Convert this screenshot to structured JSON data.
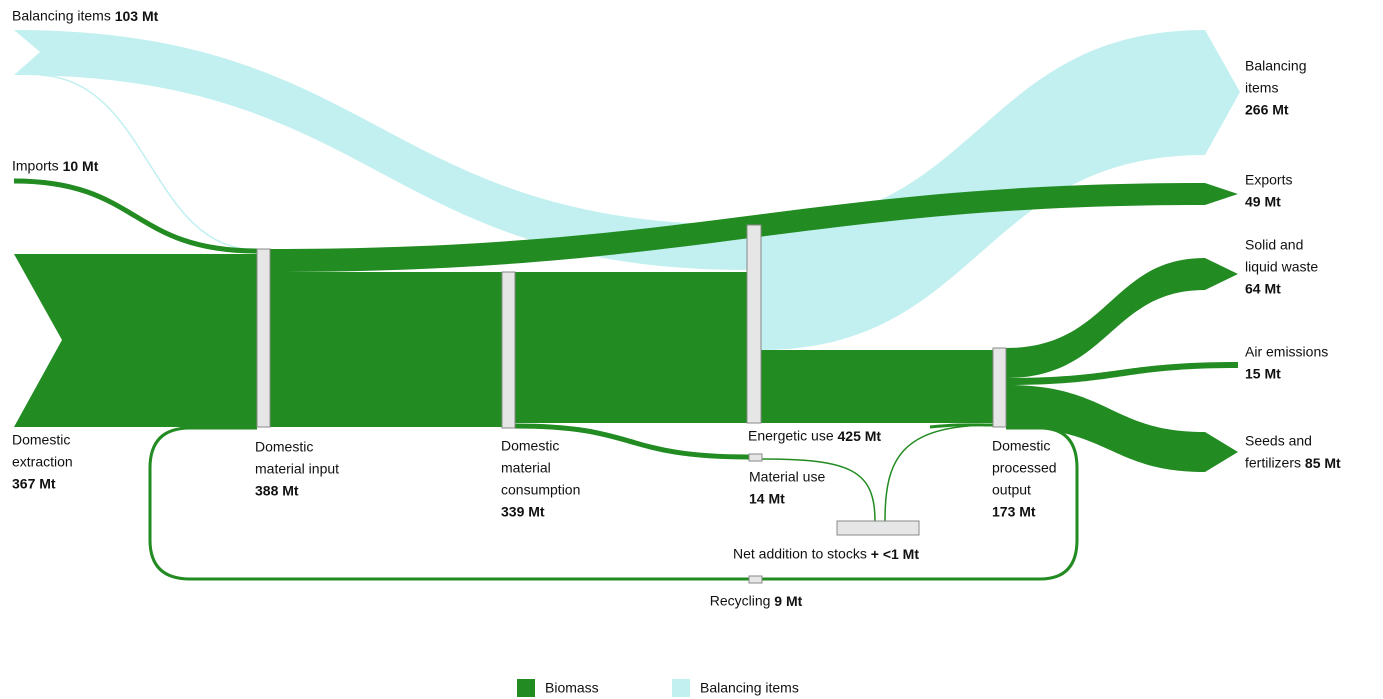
{
  "nodes": [
    {
      "label": [
        "Balancing items"
      ],
      "value": "103 Mt"
    },
    {
      "label": [
        "Imports"
      ],
      "value": "10 Mt"
    },
    {
      "label": [
        "Domestic",
        "extraction"
      ],
      "value": "367 Mt"
    },
    {
      "label": [
        "Domestic",
        "material input"
      ],
      "value": "388 Mt"
    },
    {
      "label": [
        "Domestic",
        "material",
        "consumption"
      ],
      "value": "339 Mt"
    },
    {
      "label": [
        "Energetic use"
      ],
      "value": "425 Mt"
    },
    {
      "label": [
        "Material use"
      ],
      "value": "14 Mt"
    },
    {
      "label": [
        "Net addition to stocks"
      ],
      "value": "+ <1 Mt"
    },
    {
      "label": [
        "Domestic",
        "processed",
        "output"
      ],
      "value": "173 Mt"
    },
    {
      "label": [
        "Recycling"
      ],
      "value": "9 Mt"
    },
    {
      "label": [
        "Balancing",
        "items"
      ],
      "value": "266 Mt"
    },
    {
      "label": [
        "Exports"
      ],
      "value": "49 Mt"
    },
    {
      "label": [
        "Solid and",
        "liquid waste"
      ],
      "value": "64 Mt"
    },
    {
      "label": [
        "Air emissions"
      ],
      "value": "15 Mt"
    },
    {
      "label": [
        "Seeds and",
        "fertilizers"
      ],
      "value": "85 Mt"
    }
  ],
  "legend": [
    {
      "label": "Biomass",
      "color": "#228b22"
    },
    {
      "label": "Balancing items",
      "color": "#c2f0f0"
    }
  ]
}
